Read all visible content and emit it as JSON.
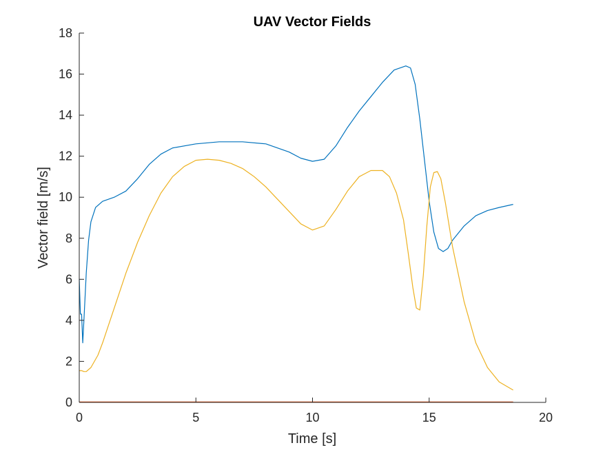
{
  "chart_data": {
    "type": "line",
    "title": "UAV Vector Fields",
    "xlabel": "Time [s]",
    "ylabel": "Vector field [m/s]",
    "xlim": [
      0,
      20
    ],
    "ylim": [
      0,
      18
    ],
    "xticks": [
      0,
      5,
      10,
      15,
      20
    ],
    "yticks": [
      0,
      2,
      4,
      6,
      8,
      10,
      12,
      14,
      16,
      18
    ],
    "grid": false,
    "legend": "none",
    "series": [
      {
        "color": "#0072BD",
        "x": [
          0,
          0.05,
          0.1,
          0.15,
          0.2,
          0.3,
          0.4,
          0.5,
          0.7,
          1.0,
          1.5,
          2.0,
          2.5,
          3.0,
          3.5,
          4.0,
          5.0,
          6.0,
          7.0,
          8.0,
          9.0,
          9.5,
          10.0,
          10.5,
          11.0,
          11.5,
          12.0,
          12.5,
          13.0,
          13.5,
          14.0,
          14.2,
          14.4,
          14.6,
          14.8,
          15.0,
          15.2,
          15.4,
          15.6,
          15.8,
          16.0,
          16.5,
          17.0,
          17.5,
          18.0,
          18.6
        ],
        "y": [
          6.0,
          4.3,
          4.3,
          2.9,
          4.0,
          6.3,
          7.9,
          8.8,
          9.5,
          9.8,
          10.0,
          10.3,
          10.9,
          11.6,
          12.1,
          12.4,
          12.6,
          12.7,
          12.7,
          12.6,
          12.2,
          11.9,
          11.75,
          11.85,
          12.5,
          13.4,
          14.2,
          14.9,
          15.6,
          16.2,
          16.4,
          16.3,
          15.5,
          13.8,
          11.8,
          9.8,
          8.3,
          7.5,
          7.35,
          7.5,
          7.9,
          8.6,
          9.1,
          9.35,
          9.5,
          9.65
        ]
      },
      {
        "color": "#EDB120",
        "x": [
          0,
          0.1,
          0.2,
          0.3,
          0.5,
          0.8,
          1.0,
          1.5,
          2.0,
          2.5,
          3.0,
          3.5,
          4.0,
          4.5,
          5.0,
          5.5,
          6.0,
          6.5,
          7.0,
          7.5,
          8.0,
          8.5,
          9.0,
          9.5,
          10.0,
          10.5,
          11.0,
          11.5,
          12.0,
          12.5,
          13.0,
          13.3,
          13.6,
          13.9,
          14.1,
          14.3,
          14.45,
          14.6,
          14.75,
          14.9,
          15.05,
          15.2,
          15.35,
          15.5,
          15.7,
          16.0,
          16.5,
          17.0,
          17.5,
          18.0,
          18.6
        ],
        "y": [
          1.55,
          1.55,
          1.5,
          1.5,
          1.7,
          2.3,
          2.9,
          4.6,
          6.3,
          7.8,
          9.1,
          10.2,
          11.0,
          11.5,
          11.8,
          11.85,
          11.8,
          11.65,
          11.4,
          11.0,
          10.5,
          9.9,
          9.3,
          8.7,
          8.4,
          8.6,
          9.4,
          10.3,
          11.0,
          11.3,
          11.3,
          11.0,
          10.2,
          8.9,
          7.3,
          5.6,
          4.6,
          4.5,
          6.2,
          8.6,
          10.5,
          11.2,
          11.25,
          10.9,
          9.7,
          7.6,
          4.9,
          2.9,
          1.7,
          1.0,
          0.6
        ]
      },
      {
        "color": "#D95319",
        "x": [
          0,
          18.6
        ],
        "y": [
          0.02,
          0.02
        ]
      }
    ]
  }
}
